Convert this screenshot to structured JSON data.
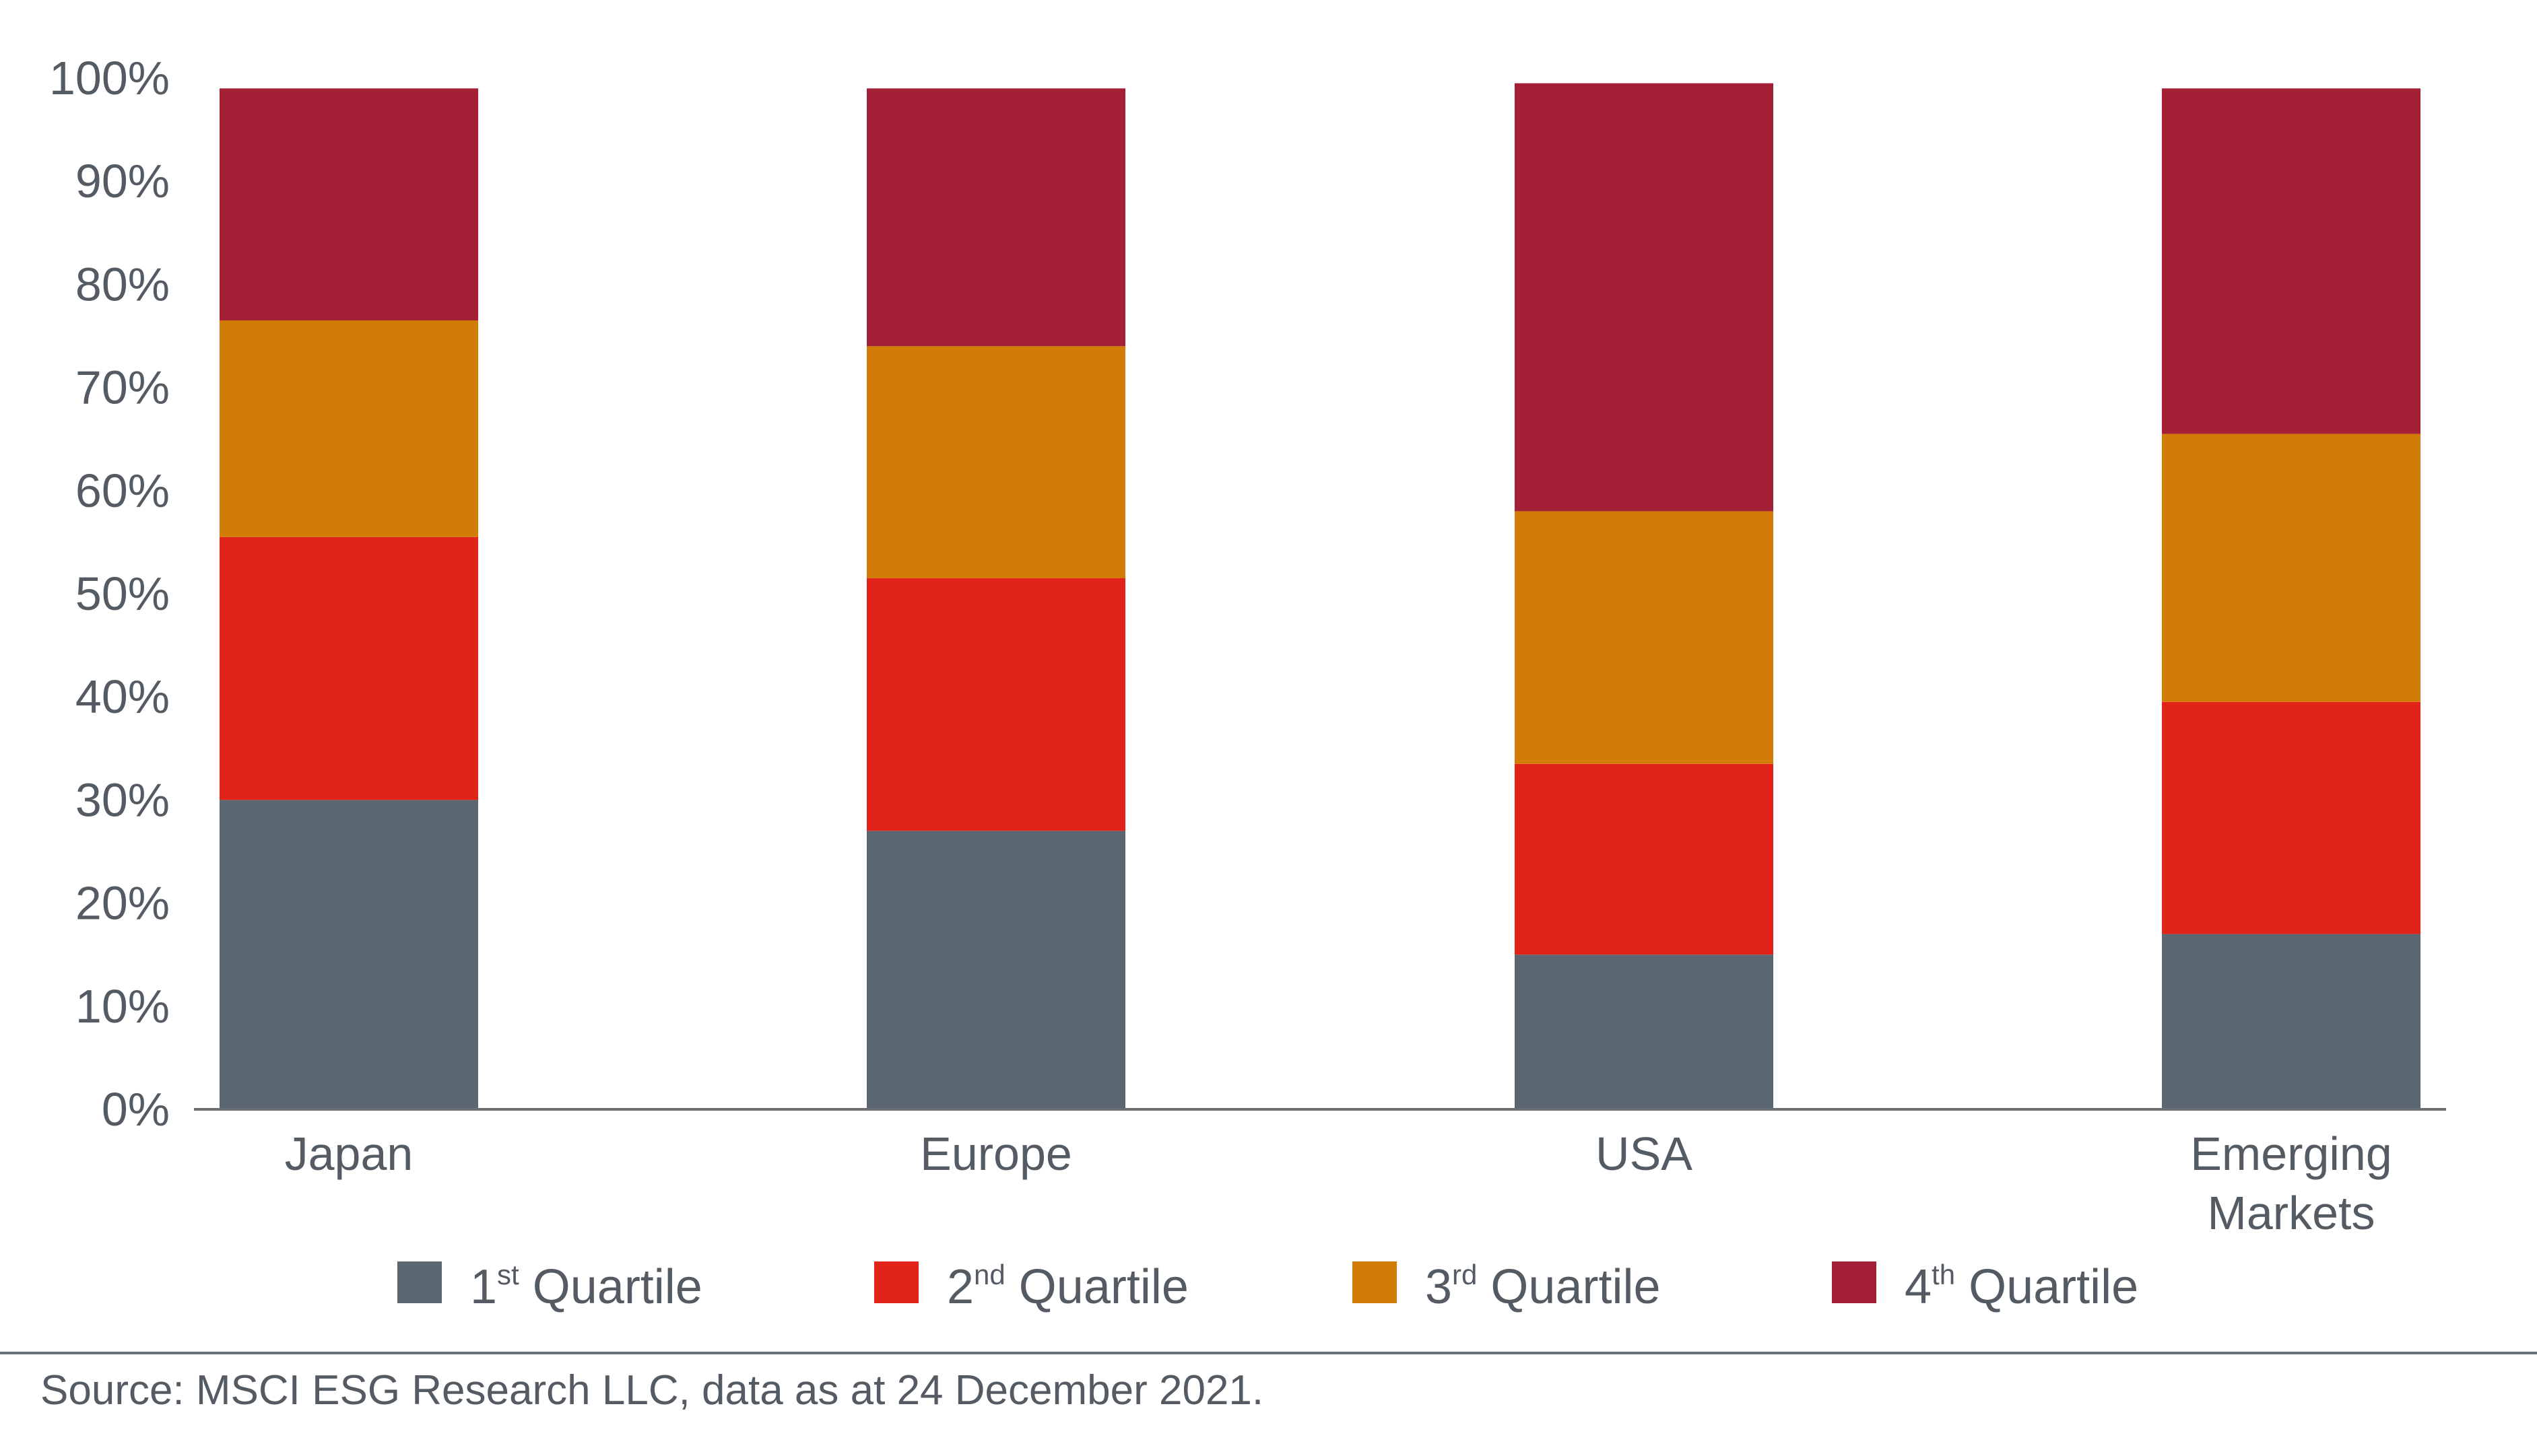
{
  "chart_data": {
    "type": "bar",
    "stacked": true,
    "categories": [
      [
        "Japan"
      ],
      [
        "Europe"
      ],
      [
        "USA"
      ],
      [
        "Emerging",
        "Markets"
      ]
    ],
    "series": [
      {
        "name": "Quartile",
        "ordinal": "1",
        "suffix": "st",
        "color": "#5a6770",
        "values": [
          30,
          27,
          15,
          17
        ]
      },
      {
        "name": "Quartile",
        "ordinal": "2",
        "suffix": "nd",
        "color": "#e2231a",
        "values": [
          25.5,
          24.5,
          18.5,
          22.5
        ]
      },
      {
        "name": "Quartile",
        "ordinal": "3",
        "suffix": "rd",
        "color": "#d27c07",
        "values": [
          21,
          22.5,
          24.5,
          26
        ]
      },
      {
        "name": "Quartile",
        "ordinal": "4",
        "suffix": "th",
        "color": "#a32036",
        "values": [
          22.5,
          25,
          41.5,
          33.5
        ]
      }
    ],
    "ylim": [
      0,
      100
    ],
    "yticks": [
      0,
      10,
      20,
      30,
      40,
      50,
      60,
      70,
      80,
      90,
      100
    ],
    "ytick_labels": [
      "0%",
      "10%",
      "20%",
      "30%",
      "40%",
      "50%",
      "60%",
      "70%",
      "80%",
      "90%",
      "100%"
    ],
    "grid": false,
    "legend_position": "bottom"
  },
  "source_note": "Source: MSCI ESG Research LLC, data as at 24 December 2021."
}
